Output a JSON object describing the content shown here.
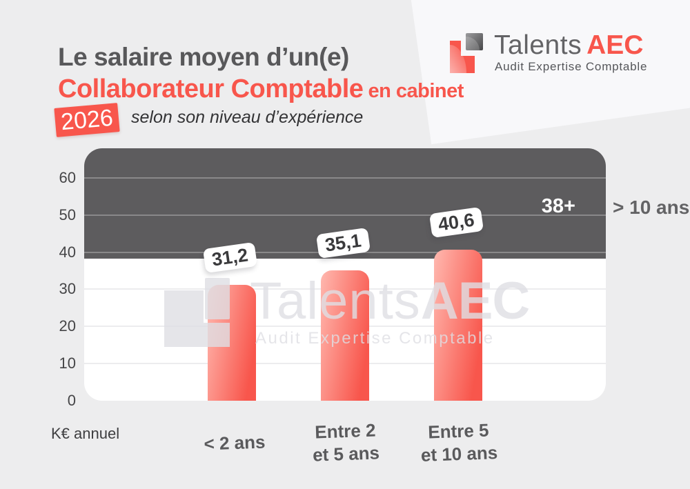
{
  "header": {
    "title_line1": "Le salaire moyen d’un(e)",
    "title_line2": "Collaborateur Comptable",
    "title_line2_suffix": "en cabinet",
    "year_badge": "2026",
    "subtitle": "selon son niveau d’expérience"
  },
  "brand": {
    "name_part1": "Talents",
    "name_part2": "AEC",
    "tagline": "Audit Expertise Comptable"
  },
  "watermark": {
    "name_part1": "Talents",
    "name_part2": "AEC",
    "tagline": "Audit Expertise Comptable"
  },
  "chart_data": {
    "type": "bar",
    "title": "Le salaire moyen d’un(e) Collaborateur Comptable en cabinet selon son niveau d’expérience — 2026",
    "categories": [
      [
        "< 2 ans"
      ],
      [
        "Entre 2",
        "et 5 ans"
      ],
      [
        "Entre 5",
        "et 10 ans"
      ]
    ],
    "values": [
      31.2,
      35.1,
      40.6
    ],
    "value_labels": [
      "31,2",
      "35,1",
      "40,6"
    ],
    "ylabel": "K€ annuel",
    "ylim": [
      0,
      68
    ],
    "yticks": [
      0,
      10,
      20,
      30,
      40,
      50,
      60
    ],
    "grid": true,
    "legend": "none",
    "band": {
      "from_value": 38,
      "label": "38+",
      "category": "> 10 ans"
    },
    "colors": {
      "bar_gradient_light": "#ffb6ad",
      "bar_gradient_dark": "#f8564c",
      "band_background": "#5d5c5e",
      "accent_coral": "#f8564c",
      "title_gray": "#58585a"
    }
  }
}
